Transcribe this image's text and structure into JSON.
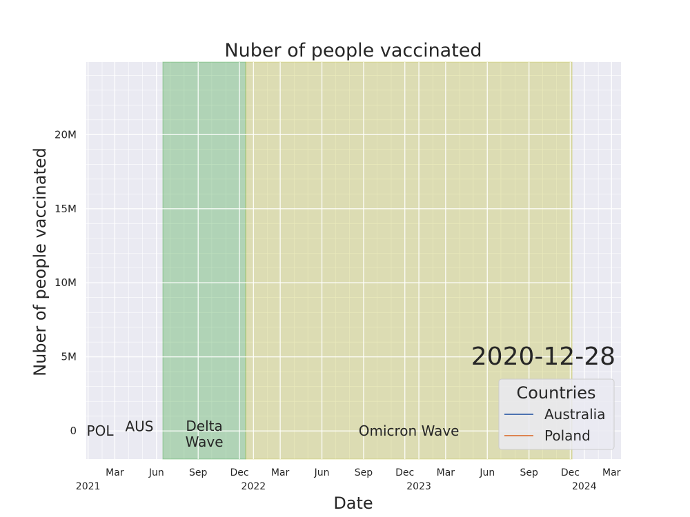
{
  "chart_data": {
    "type": "line",
    "title": "Nuber of people vaccinated",
    "xlabel": "Date",
    "ylabel": "Nuber of people vaccinated",
    "xlim": [
      "2020-12-28",
      "2024-03-22"
    ],
    "ylim": [
      -1900000,
      24900000
    ],
    "grid": true,
    "x_ticks": [
      {
        "date": "2021-01-01",
        "label": "",
        "year": "2021"
      },
      {
        "date": "2021-03-01",
        "label": "Mar",
        "year": ""
      },
      {
        "date": "2021-06-01",
        "label": "Jun",
        "year": ""
      },
      {
        "date": "2021-09-01",
        "label": "Sep",
        "year": ""
      },
      {
        "date": "2021-12-01",
        "label": "Dec",
        "year": ""
      },
      {
        "date": "2022-01-01",
        "label": "",
        "year": "2022"
      },
      {
        "date": "2022-03-01",
        "label": "Mar",
        "year": ""
      },
      {
        "date": "2022-06-01",
        "label": "Jun",
        "year": ""
      },
      {
        "date": "2022-09-01",
        "label": "Sep",
        "year": ""
      },
      {
        "date": "2022-12-01",
        "label": "Dec",
        "year": ""
      },
      {
        "date": "2023-01-01",
        "label": "",
        "year": "2023"
      },
      {
        "date": "2023-03-01",
        "label": "Mar",
        "year": ""
      },
      {
        "date": "2023-06-01",
        "label": "Jun",
        "year": ""
      },
      {
        "date": "2023-09-01",
        "label": "Sep",
        "year": ""
      },
      {
        "date": "2023-12-01",
        "label": "Dec",
        "year": ""
      },
      {
        "date": "2024-01-01",
        "label": "",
        "year": "2024"
      },
      {
        "date": "2024-03-01",
        "label": "Mar",
        "year": ""
      }
    ],
    "y_ticks": [
      {
        "value": 0,
        "label": "0"
      },
      {
        "value": 5000000,
        "label": "5M"
      },
      {
        "value": 10000000,
        "label": "10M"
      },
      {
        "value": 15000000,
        "label": "15M"
      },
      {
        "value": 20000000,
        "label": "20M"
      }
    ],
    "shaded_periods": [
      {
        "label": "Delta\nWave",
        "start": "2021-06-15",
        "end": "2021-12-15",
        "color": "#2ca02c",
        "label_value": -200000
      },
      {
        "label": "Omicron Wave",
        "start": "2021-12-15",
        "end": "2023-12-05",
        "color": "#bcbd22",
        "label_value": 0
      }
    ],
    "series": [
      {
        "name": "Australia",
        "short": "AUS",
        "color": "#4c72b0",
        "x": [
          "2020-12-28"
        ],
        "y": [
          0
        ],
        "label_value": 300000
      },
      {
        "name": "Poland",
        "short": "POL",
        "color": "#dd8452",
        "x": [
          "2020-12-28"
        ],
        "y": [
          0
        ],
        "label_value": 0
      }
    ],
    "current_date": "2020-12-28",
    "legend": {
      "title": "Countries",
      "placement": "lower-right"
    }
  }
}
